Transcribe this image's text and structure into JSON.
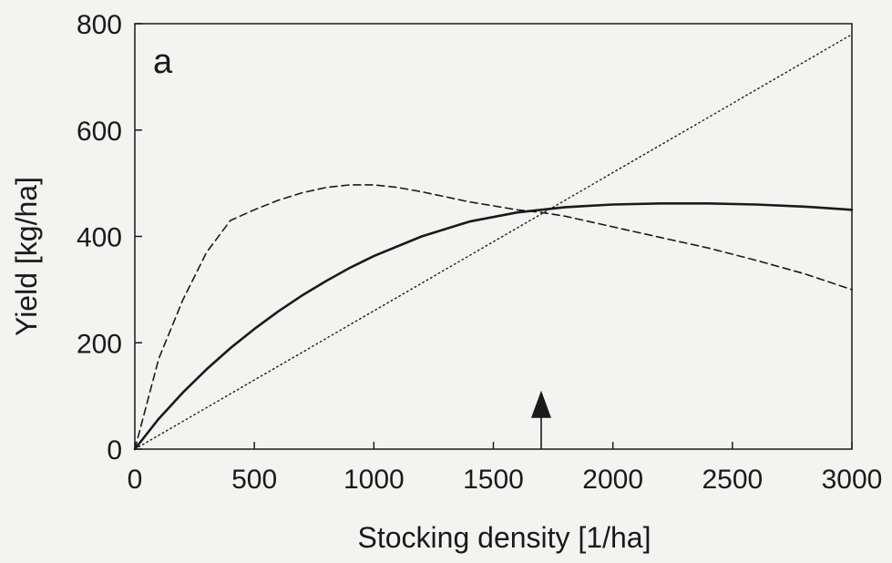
{
  "chart_data": {
    "type": "line",
    "panel_label": "a",
    "xlabel": "Stocking density [1/ha]",
    "ylabel": "Yield [kg/ha]",
    "xlim": [
      0,
      3000
    ],
    "ylim": [
      0,
      800
    ],
    "x_ticks": [
      0,
      500,
      1000,
      1500,
      2000,
      2500,
      3000
    ],
    "y_ticks": [
      0,
      200,
      400,
      600,
      800
    ],
    "grid": false,
    "legend": "none",
    "colors": {
      "ink": "#1a1a1a",
      "background": "#f3f3f1"
    },
    "series": [
      {
        "style": "solid",
        "x": [
          0,
          100,
          200,
          300,
          400,
          500,
          600,
          700,
          800,
          900,
          1000,
          1200,
          1400,
          1600,
          1700,
          1800,
          2000,
          2200,
          2400,
          2600,
          2800,
          3000
        ],
        "y": [
          0,
          57,
          106,
          150,
          190,
          226,
          259,
          289,
          316,
          341,
          363,
          400,
          428,
          445,
          450,
          455,
          460,
          462,
          462,
          460,
          456,
          450
        ]
      },
      {
        "style": "dashed",
        "x": [
          0,
          100,
          200,
          300,
          400,
          500,
          600,
          700,
          800,
          900,
          1000,
          1100,
          1200,
          1400,
          1600,
          1700,
          1800,
          2000,
          2200,
          2400,
          2600,
          2800,
          3000
        ],
        "y": [
          0,
          170,
          280,
          370,
          430,
          450,
          468,
          482,
          492,
          497,
          497,
          492,
          484,
          465,
          450,
          445,
          438,
          418,
          398,
          378,
          355,
          330,
          300
        ]
      },
      {
        "style": "dotted",
        "x": [
          0,
          3000
        ],
        "y": [
          0,
          780
        ]
      }
    ],
    "annotations": [
      {
        "type": "arrow",
        "x": 1700,
        "y_from": 0,
        "y_to": 110
      }
    ]
  }
}
